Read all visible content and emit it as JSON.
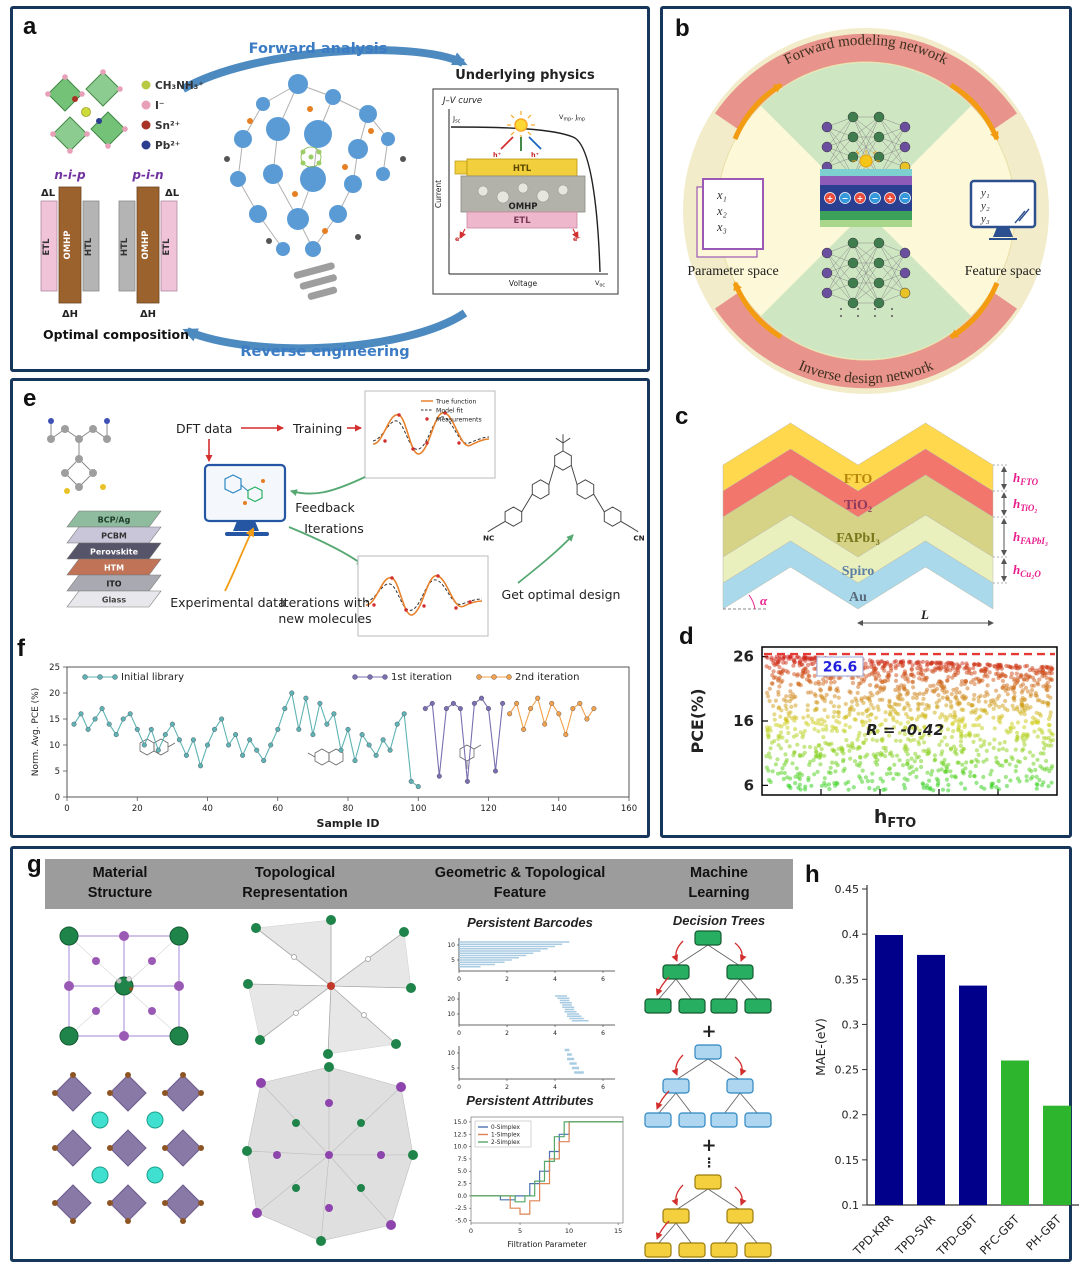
{
  "panels": {
    "a": "a",
    "b": "b",
    "c": "c",
    "d": "d",
    "e": "e",
    "f": "f",
    "g": "g",
    "h": "h"
  },
  "panel_a": {
    "forward_label": "Forward analysis",
    "reverse_label": "Reverse engineering",
    "legend": [
      {
        "name": "CH₃NH₃⁺",
        "color": "#b9c944"
      },
      {
        "name": "I⁻",
        "color": "#e8a0b8"
      },
      {
        "name": "Sn²⁺",
        "color": "#a93226"
      },
      {
        "name": "Pb²⁺",
        "color": "#2c3e8f"
      }
    ],
    "stack_left": {
      "title": "n-i-p",
      "layers": [
        "ETL",
        "OMHP",
        "HTL"
      ],
      "dl": "ΔL",
      "dh": "ΔH"
    },
    "stack_right": {
      "title": "p-i-n",
      "layers": [
        "HTL",
        "OMHP",
        "ETL"
      ],
      "dl": "ΔL",
      "dh": "ΔH"
    },
    "optimal_caption": "Optimal composition",
    "physics_title": "Underlying physics",
    "jv": {
      "title": "J–V curve",
      "ylabel": "Current",
      "xlabel": "Voltage",
      "jsc": [
        "J",
        "sc"
      ],
      "vmp_jmp": [
        "V",
        "mp",
        ", ",
        "J",
        "mp"
      ],
      "voc": [
        "V",
        "oc"
      ],
      "layers": [
        "HTL",
        "OMHP",
        "ETL"
      ],
      "hole": "h⁺",
      "electron": "e⁻"
    }
  },
  "panel_b": {
    "top_arc_label": "Forward modeling network",
    "bottom_arc_label": "Inverse design network",
    "param_space": {
      "label": "Parameter space",
      "vars": [
        "x₁",
        "x₂",
        "x₃"
      ]
    },
    "feature_space": {
      "label": "Feature space",
      "vars": [
        "y₁",
        "y₂",
        "y₃"
      ]
    },
    "charges": {
      "plus": "+",
      "minus": "−"
    }
  },
  "panel_c": {
    "layers": [
      {
        "name": "FTO",
        "color": "#ffd84d",
        "text_color": "#b8860b"
      },
      {
        "name": "TiO₂",
        "color": "#f2766b",
        "text_color": "#8e3a5f"
      },
      {
        "name": "FAPbI₃",
        "color": "#d6d387",
        "text_color": "#77771c"
      },
      {
        "name": "Spiro",
        "color": "#e9efbd",
        "text_color": "#5b7fa6"
      },
      {
        "name": "Au",
        "color": "#a9d9ea",
        "text_color": "#5a6b7d"
      }
    ],
    "thickness_labels": [
      [
        "h",
        "FTO"
      ],
      [
        "h",
        "TiO₂"
      ],
      [
        "h",
        "FAPbI₃"
      ],
      [
        "h",
        "Cu₂O"
      ]
    ],
    "alpha": "α",
    "length": "L"
  },
  "panel_e": {
    "dft": "DFT data",
    "training": "Training",
    "feedback": "Feedback",
    "iterations": "Iterations",
    "experimental": "Experimental data",
    "iter_new_lines": [
      "Iterations with",
      "new molecules"
    ],
    "optimal": "Get optimal design",
    "plot_legend": [
      "True function",
      "Model fit",
      "Measurements"
    ],
    "stack": [
      {
        "name": "BCP/Ag",
        "color": "#8fbc9f",
        "text": "#1d3b2a"
      },
      {
        "name": "PCBM",
        "color": "#c9c6d9",
        "text": "#333333"
      },
      {
        "name": "Perovskite",
        "color": "#565468",
        "text": "#ffffff"
      },
      {
        "name": "HTM",
        "color": "#c17357",
        "text": "#ffffff"
      },
      {
        "name": "ITO",
        "color": "#a9a9b2",
        "text": "#222222"
      },
      {
        "name": "Glass",
        "color": "#e8e8ec",
        "text": "#444444"
      }
    ],
    "nc": "NC",
    "cn": "CN"
  },
  "panel_g": {
    "headers": [
      [
        "Material",
        "Structure"
      ],
      [
        "Topological",
        "Representation"
      ],
      [
        "Geometric & Topological",
        "Feature"
      ],
      [
        "Machine",
        "Learning"
      ]
    ],
    "barcodes_title": "Persistent Barcodes",
    "attributes_title": "Persistent Attributes",
    "trees_title": "Decision Trees",
    "plus": "+",
    "dots": "⋮"
  },
  "chart_data": [
    {
      "id": "d_scatter",
      "type": "scatter",
      "ylabel": "PCE(%)",
      "xlabel_parts": [
        "h",
        "FTO"
      ],
      "yticks": [
        6,
        16,
        26
      ],
      "ylim": [
        4.5,
        27.5
      ],
      "xlim": [
        0,
        1
      ],
      "max_annotation": "26.6",
      "corr_annotation": "R = -0.42",
      "dashed_line_y": 26.4,
      "points_summary": {
        "n": 1500,
        "y_max_left": 26.2,
        "y_max_right": 24.4,
        "y_min": 5.2,
        "r": -0.42
      },
      "grid": false,
      "legend_position": "none"
    },
    {
      "id": "f_iterations",
      "type": "line",
      "xlabel": "Sample ID",
      "ylabel": "Norm. Avg. PCE (%)",
      "xlim": [
        0,
        160
      ],
      "ylim": [
        0,
        25
      ],
      "xticks": [
        0,
        20,
        40,
        60,
        80,
        100,
        120,
        140,
        160
      ],
      "yticks": [
        0,
        5,
        10,
        15,
        20,
        25
      ],
      "grid": false,
      "legend_position": "top-inside",
      "series": [
        {
          "name": "Initial library",
          "color": "#5fb3b3",
          "x": [
            2,
            4,
            6,
            8,
            10,
            12,
            14,
            16,
            18,
            20,
            22,
            24,
            26,
            28,
            30,
            32,
            34,
            36,
            38,
            40,
            42,
            44,
            46,
            48,
            50,
            52,
            54,
            56,
            58,
            60,
            62,
            64,
            66,
            68,
            70,
            72,
            74,
            76,
            78,
            80,
            82,
            84,
            86,
            88,
            90,
            92,
            94,
            96,
            98,
            100
          ],
          "y": [
            14,
            16,
            13,
            15,
            17,
            14,
            12,
            15,
            16,
            13,
            10,
            13,
            9,
            12,
            14,
            11,
            8,
            11,
            6,
            10,
            13,
            15,
            10,
            12,
            8,
            11,
            9,
            7,
            10,
            13,
            17,
            20,
            13,
            19,
            12,
            18,
            14,
            16,
            9,
            13,
            7,
            12,
            10,
            8,
            11,
            9,
            14,
            16,
            3,
            2
          ]
        },
        {
          "name": "1st iteration",
          "color": "#7a6fb0",
          "x": [
            102,
            104,
            106,
            108,
            110,
            112,
            114,
            116,
            118,
            120,
            122,
            124
          ],
          "y": [
            17,
            18,
            4,
            17,
            18,
            17,
            3,
            18,
            19,
            17,
            5,
            18
          ]
        },
        {
          "name": "2nd iteration",
          "color": "#f2a24a",
          "x": [
            126,
            128,
            130,
            132,
            134,
            136,
            138,
            140,
            142,
            144,
            146,
            148,
            150
          ],
          "y": [
            16,
            18,
            13,
            17,
            19,
            14,
            18,
            16,
            12,
            17,
            18,
            15,
            17
          ]
        }
      ]
    },
    {
      "id": "g_barcodes",
      "type": "barcode",
      "plots": [
        {
          "yticks": [
            10,
            5
          ],
          "xticks": [
            0,
            2,
            4,
            6
          ],
          "xlim": [
            0,
            6.5
          ],
          "bars": [
            [
              0,
              4.6
            ],
            [
              0,
              4.3
            ],
            [
              0,
              4.0
            ],
            [
              0,
              3.7
            ],
            [
              0,
              3.4
            ],
            [
              0,
              3.1
            ],
            [
              0,
              2.8
            ],
            [
              0,
              2.5
            ],
            [
              0,
              2.2
            ],
            [
              0,
              1.9
            ],
            [
              0,
              1.5
            ],
            [
              0,
              0.9
            ]
          ]
        },
        {
          "yticks": [
            20,
            10
          ],
          "xticks": [
            0,
            2,
            4,
            6
          ],
          "xlim": [
            0,
            6.5
          ],
          "bars": [
            [
              4.0,
              4.5
            ],
            [
              4.1,
              4.6
            ],
            [
              4.2,
              4.6
            ],
            [
              4.2,
              4.7
            ],
            [
              4.3,
              4.7
            ],
            [
              4.3,
              4.8
            ],
            [
              4.4,
              4.8
            ],
            [
              4.4,
              4.9
            ],
            [
              4.5,
              5.0
            ],
            [
              4.5,
              5.1
            ],
            [
              4.6,
              5.2
            ],
            [
              4.7,
              5.4
            ]
          ]
        },
        {
          "yticks": [
            10,
            5
          ],
          "xticks": [
            0,
            2,
            4,
            6
          ],
          "xlim": [
            0,
            6.5
          ],
          "bars": [
            [
              4.4,
              4.6
            ],
            [
              4.5,
              4.7
            ],
            [
              4.5,
              4.8
            ],
            [
              4.6,
              4.9
            ],
            [
              4.7,
              5.0
            ],
            [
              4.8,
              5.2
            ]
          ]
        }
      ]
    },
    {
      "id": "g_attributes",
      "type": "line",
      "xlabel": "Filtration Parameter",
      "xticks": [
        0,
        5,
        10,
        15
      ],
      "yticks": [
        -5,
        -2.5,
        0,
        2.5,
        5,
        7.5,
        10,
        12.5,
        15
      ],
      "xlim": [
        0,
        15.5
      ],
      "ylim": [
        -5.5,
        16
      ],
      "grid": false,
      "legend_position": "top-left-inside",
      "series": [
        {
          "name": "0-Simplex",
          "color": "#4c72b0",
          "x": [
            0,
            3,
            3,
            4.5,
            4.5,
            6,
            6,
            7,
            7,
            8,
            8,
            9,
            9,
            10,
            10,
            15.5
          ],
          "y": [
            0,
            0,
            -0.8,
            -0.8,
            0,
            0,
            2.5,
            2.5,
            5,
            5,
            9,
            9,
            12.5,
            12.5,
            15,
            15
          ]
        },
        {
          "name": "1-Simplex",
          "color": "#dd8452",
          "x": [
            0,
            4,
            4,
            5,
            5,
            6,
            6,
            7,
            7,
            8,
            8,
            9,
            9,
            10,
            10,
            15.5
          ],
          "y": [
            0,
            0,
            -2.5,
            -2.5,
            -3.7,
            -3.7,
            -1,
            -1,
            2.5,
            2.5,
            7.5,
            7.5,
            11,
            11,
            15,
            15
          ]
        },
        {
          "name": "2-Simplex",
          "color": "#55a868",
          "x": [
            0,
            4.5,
            4.5,
            5.5,
            5.5,
            6.5,
            6.5,
            7.5,
            7.5,
            8.5,
            8.5,
            9.5,
            9.5,
            15.5
          ],
          "y": [
            0,
            0,
            -1.2,
            -1.2,
            0,
            0,
            3,
            3,
            7,
            7,
            12,
            12,
            15,
            15
          ]
        }
      ]
    },
    {
      "id": "h_mae",
      "type": "bar",
      "ylabel": "MAE-(eV)",
      "categories": [
        "TPD-KRR",
        "TPD-SVR",
        "TPD-GBT",
        "PFC-GBT",
        "PH-GBT"
      ],
      "values": [
        0.399,
        0.377,
        0.343,
        0.26,
        0.21
      ],
      "bar_colors": [
        "#00008b",
        "#00008b",
        "#00008b",
        "#2db52d",
        "#2db52d"
      ],
      "ylim": [
        0.1,
        0.45
      ],
      "yticks": [
        0.1,
        0.15,
        0.2,
        0.25,
        0.3,
        0.35,
        0.4,
        0.45
      ],
      "grid": false
    }
  ]
}
